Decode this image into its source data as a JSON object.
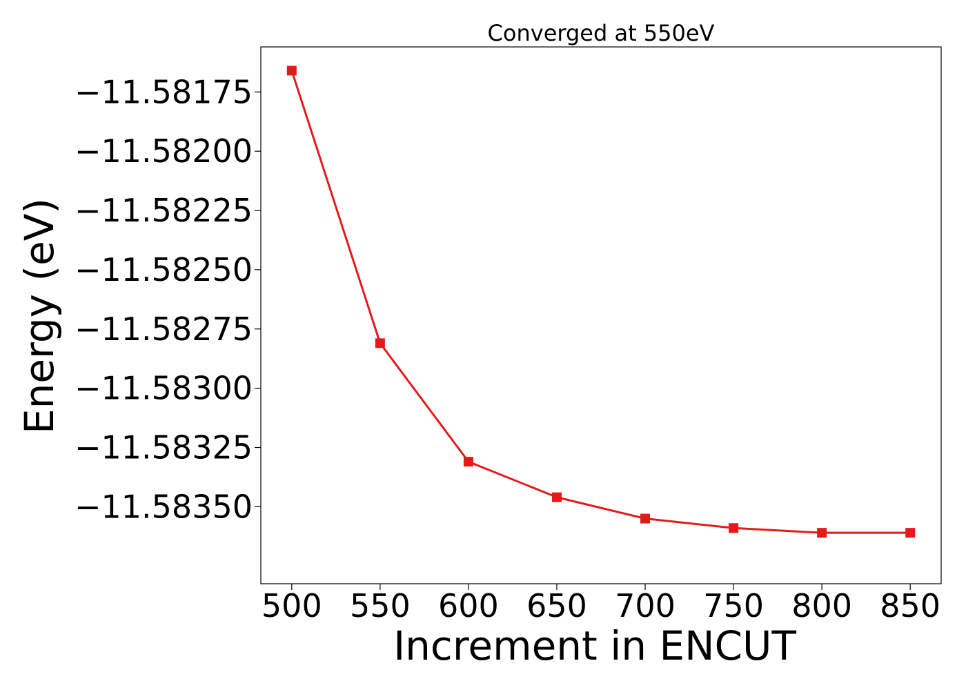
{
  "chart_data": {
    "type": "line",
    "title": "Converged at 550eV",
    "xlabel": "Increment in ENCUT",
    "ylabel": "Energy (eV)",
    "x": [
      500,
      550,
      600,
      650,
      700,
      750,
      800,
      850
    ],
    "series": [
      {
        "values": [
          -11.58166,
          -11.58281,
          -11.58331,
          -11.58346,
          -11.58355,
          -11.58359,
          -11.58361,
          -11.58361
        ],
        "color": "#e31a1c",
        "marker": "square"
      }
    ],
    "xticks": [
      500,
      550,
      600,
      650,
      700,
      750,
      800,
      850
    ],
    "xtick_labels": [
      "500",
      "550",
      "600",
      "650",
      "700",
      "750",
      "800",
      "850"
    ],
    "yticks": [
      -11.58175,
      -11.582,
      -11.58225,
      -11.5825,
      -11.58275,
      -11.583,
      -11.58325,
      -11.5835
    ],
    "ytick_labels": [
      "−11.58175",
      "−11.58200",
      "−11.58225",
      "−11.58250",
      "−11.58275",
      "−11.58300",
      "−11.58325",
      "−11.58350"
    ],
    "xlim": [
      482.5,
      867.5
    ],
    "ylim": [
      -11.583825,
      -11.58156
    ],
    "grid": false,
    "legend": false
  }
}
